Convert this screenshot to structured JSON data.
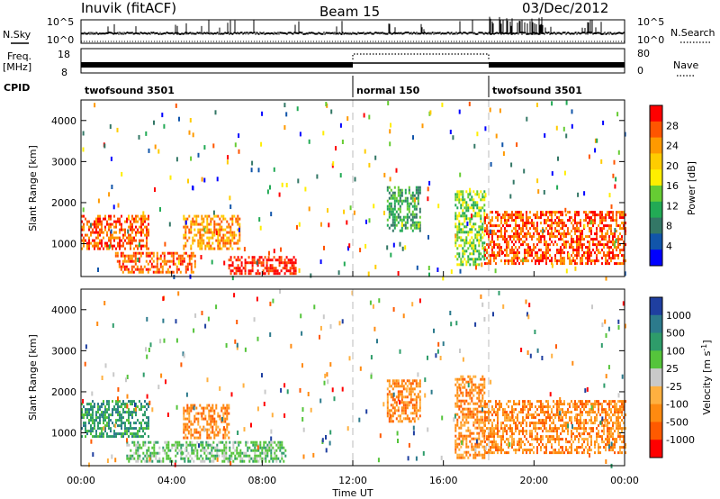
{
  "header": {
    "station": "Inuvik (fitACF)",
    "beam": "Beam 15",
    "date": "03/Dec/2012"
  },
  "strip": {
    "nsky_label": "N.Sky",
    "nsearch_label": "N.Search",
    "nsky_ticks": [
      "10^5",
      "10^0"
    ],
    "nsearch_ticks": [
      "10^5",
      "10^0"
    ],
    "freq_label_1": "Freq.",
    "freq_label_2": "[MHz]",
    "freq_ticks": [
      "18",
      "8"
    ],
    "nave_label": "Nave",
    "nave_ticks": [
      "80",
      "0"
    ],
    "cpid_label": "CPID",
    "cpid_segments": [
      {
        "name": "twofsound 3501",
        "start": 0,
        "end": 12
      },
      {
        "name": "normal 150",
        "start": 12,
        "end": 18
      },
      {
        "name": "twofsound 3501",
        "start": 18,
        "end": 24
      }
    ]
  },
  "chart_data": [
    {
      "type": "heatmap",
      "title": "",
      "ylabel": "Slant Range [km]",
      "xlabel": "",
      "xlim": [
        0,
        24
      ],
      "ylim": [
        200,
        4500
      ],
      "y_ticks": [
        "1000",
        "2000",
        "3000",
        "4000"
      ],
      "colorbar_label": "Power [dB]",
      "colorbar_ticks": [
        "28",
        "24",
        "20",
        "16",
        "12",
        "8",
        "4"
      ],
      "colorbar_colors": [
        "#ff0000",
        "#ff5500",
        "#ff9900",
        "#ffcc00",
        "#ffee00",
        "#66cc33",
        "#22aa55",
        "#337766",
        "#1155aa",
        "#0000ff"
      ],
      "features": [
        {
          "t0": 0.0,
          "t1": 3.0,
          "r0": 900,
          "r1": 1700,
          "value": 26
        },
        {
          "t0": 1.5,
          "t1": 5.0,
          "r0": 300,
          "r1": 800,
          "value": 24
        },
        {
          "t0": 4.5,
          "t1": 7.0,
          "r0": 900,
          "r1": 1700,
          "value": 22
        },
        {
          "t0": 6.5,
          "t1": 9.5,
          "r0": 250,
          "r1": 700,
          "value": 28
        },
        {
          "t0": 13.5,
          "t1": 15.0,
          "r0": 1300,
          "r1": 2400,
          "value": 10
        },
        {
          "t0": 16.5,
          "t1": 17.8,
          "r0": 500,
          "r1": 2300,
          "value": 14
        },
        {
          "t0": 17.8,
          "t1": 24.0,
          "r0": 500,
          "r1": 1800,
          "value": 24
        }
      ]
    },
    {
      "type": "heatmap",
      "title": "",
      "ylabel": "Slant Range [km]",
      "xlabel": "Time UT",
      "xlim": [
        0,
        24
      ],
      "ylim": [
        200,
        4500
      ],
      "x_ticks": [
        "00:00",
        "04:00",
        "08:00",
        "12:00",
        "16:00",
        "20:00",
        "00:00"
      ],
      "y_ticks": [
        "1000",
        "2000",
        "3000",
        "4000"
      ],
      "colorbar_label": "Velocity [m s-1]",
      "colorbar_ticks": [
        "1000",
        "500",
        "100",
        "25",
        "-25",
        "-100",
        "-500",
        "-1000"
      ],
      "colorbar_colors": [
        "#1f3fa0",
        "#2c7a8c",
        "#2e9c6a",
        "#55c43b",
        "#c9c9c9",
        "#ffb040",
        "#ff8a10",
        "#ff5a00",
        "#ff0000"
      ],
      "features": [
        {
          "t0": 0.0,
          "t1": 3.0,
          "r0": 900,
          "r1": 1800,
          "value": 200
        },
        {
          "t0": 2.0,
          "t1": 9.0,
          "r0": 300,
          "r1": 800,
          "value": 25
        },
        {
          "t0": 4.5,
          "t1": 6.5,
          "r0": 900,
          "r1": 1700,
          "value": -300
        },
        {
          "t0": 13.5,
          "t1": 15.0,
          "r0": 1300,
          "r1": 2300,
          "value": -300
        },
        {
          "t0": 16.5,
          "t1": 17.8,
          "r0": 400,
          "r1": 2400,
          "value": -500
        },
        {
          "t0": 17.8,
          "t1": 24.0,
          "r0": 500,
          "r1": 1800,
          "value": -400
        }
      ]
    }
  ]
}
